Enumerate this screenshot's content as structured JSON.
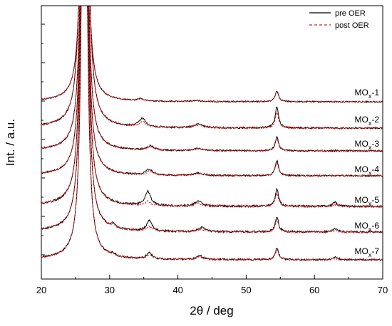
{
  "chart_data": {
    "type": "line",
    "title": "",
    "xlabel": "2θ / deg",
    "ylabel": "Int. / a.u.",
    "xlim": [
      20,
      70
    ],
    "x_ticks": [
      "20",
      "30",
      "40",
      "50",
      "60",
      "70"
    ],
    "y_ticks_labeled": false,
    "legend_position": "top-right",
    "legend": [
      {
        "name": "pre OER",
        "color": "#000000",
        "style": "solid"
      },
      {
        "name": "post OER",
        "color": "#e41a1c",
        "style": "dashed"
      }
    ],
    "series_colors": {
      "pre": "#000000",
      "post": "#e41a1c"
    },
    "samples": [
      {
        "label_main": "MO",
        "label_sub": "x",
        "label_suffix": "-1",
        "pre": {
          "baseline": 1.0,
          "peaks": [
            [
              26.3,
              100,
              0.35
            ],
            [
              34.5,
              0.35,
              0.5
            ],
            [
              42.8,
              0.15,
              0.8
            ],
            [
              54.5,
              1.7,
              0.3
            ]
          ]
        },
        "post": {
          "baseline": 1.0,
          "peaks": [
            [
              26.3,
              100,
              0.35
            ],
            [
              34.5,
              0.3,
              0.5
            ],
            [
              42.8,
              0.15,
              0.8
            ],
            [
              54.5,
              1.5,
              0.3
            ]
          ]
        }
      },
      {
        "label_main": "MO",
        "label_sub": "x",
        "label_suffix": "-2",
        "pre": {
          "baseline": 2.0,
          "peaks": [
            [
              26.3,
              100,
              0.35
            ],
            [
              34.8,
              1.0,
              0.6
            ],
            [
              43.0,
              0.4,
              0.8
            ],
            [
              54.5,
              2.5,
              0.3
            ]
          ]
        },
        "post": {
          "baseline": 2.0,
          "peaks": [
            [
              26.3,
              100,
              0.35
            ],
            [
              34.8,
              0.6,
              0.6
            ],
            [
              43.0,
              0.3,
              0.8
            ],
            [
              54.5,
              1.8,
              0.3
            ]
          ]
        }
      },
      {
        "label_main": "MO",
        "label_sub": "x",
        "label_suffix": "-3",
        "pre": {
          "baseline": 1.5,
          "peaks": [
            [
              26.3,
              100,
              0.35
            ],
            [
              36.0,
              0.6,
              0.6
            ],
            [
              43.0,
              0.3,
              0.8
            ],
            [
              54.5,
              1.9,
              0.3
            ]
          ]
        },
        "post": {
          "baseline": 1.5,
          "peaks": [
            [
              26.3,
              100,
              0.35
            ],
            [
              36.0,
              0.5,
              0.6
            ],
            [
              43.0,
              0.3,
              0.8
            ],
            [
              54.5,
              1.7,
              0.3
            ]
          ]
        }
      },
      {
        "label_main": "MO",
        "label_sub": "x",
        "label_suffix": "-4",
        "pre": {
          "baseline": 1.5,
          "peaks": [
            [
              26.3,
              100,
              0.35
            ],
            [
              35.8,
              0.8,
              0.6
            ],
            [
              43.0,
              0.35,
              0.8
            ],
            [
              54.5,
              2.1,
              0.3
            ]
          ]
        },
        "post": {
          "baseline": 1.5,
          "peaks": [
            [
              26.3,
              100,
              0.35
            ],
            [
              35.8,
              0.5,
              0.6
            ],
            [
              43.0,
              0.3,
              0.8
            ],
            [
              54.5,
              1.8,
              0.3
            ]
          ]
        }
      },
      {
        "label_main": "MO",
        "label_sub": "x",
        "label_suffix": "-5",
        "pre": {
          "baseline": 1.5,
          "peaks": [
            [
              26.3,
              100,
              0.35
            ],
            [
              35.6,
              1.8,
              0.5
            ],
            [
              43.0,
              0.6,
              0.6
            ],
            [
              54.5,
              2.2,
              0.3
            ],
            [
              63.0,
              0.5,
              0.4
            ]
          ]
        },
        "post": {
          "baseline": 1.5,
          "peaks": [
            [
              26.3,
              100,
              0.35
            ],
            [
              35.6,
              0.5,
              0.6
            ],
            [
              43.0,
              0.3,
              0.8
            ],
            [
              54.5,
              1.6,
              0.3
            ],
            [
              63.0,
              0.2,
              0.5
            ]
          ]
        }
      },
      {
        "label_main": "MO",
        "label_sub": "x",
        "label_suffix": "-6",
        "pre": {
          "baseline": 1.5,
          "peaks": [
            [
              26.3,
              100,
              0.35
            ],
            [
              30.5,
              0.5,
              0.4
            ],
            [
              35.8,
              1.3,
              0.5
            ],
            [
              43.5,
              0.5,
              0.6
            ],
            [
              54.5,
              1.9,
              0.3
            ],
            [
              63.0,
              0.4,
              0.4
            ]
          ]
        },
        "post": {
          "baseline": 1.5,
          "peaks": [
            [
              26.3,
              100,
              0.35
            ],
            [
              30.5,
              0.3,
              0.4
            ],
            [
              35.8,
              0.6,
              0.6
            ],
            [
              43.5,
              0.3,
              0.8
            ],
            [
              54.5,
              1.5,
              0.3
            ],
            [
              63.0,
              0.2,
              0.5
            ]
          ]
        }
      },
      {
        "label_main": "MO",
        "label_sub": "x",
        "label_suffix": "-7",
        "pre": {
          "baseline": 1.2,
          "peaks": [
            [
              26.3,
              100,
              0.35
            ],
            [
              30.5,
              0.3,
              0.5
            ],
            [
              35.8,
              0.9,
              0.5
            ],
            [
              43.2,
              0.5,
              0.6
            ],
            [
              54.5,
              1.6,
              0.3
            ],
            [
              63.0,
              0.4,
              0.4
            ]
          ]
        },
        "post": {
          "baseline": 1.2,
          "peaks": [
            [
              26.3,
              100,
              0.35
            ],
            [
              30.5,
              0.2,
              0.5
            ],
            [
              35.8,
              0.5,
              0.6
            ],
            [
              43.2,
              0.3,
              0.8
            ],
            [
              54.5,
              1.4,
              0.3
            ],
            [
              63.0,
              0.2,
              0.5
            ]
          ]
        }
      }
    ]
  }
}
